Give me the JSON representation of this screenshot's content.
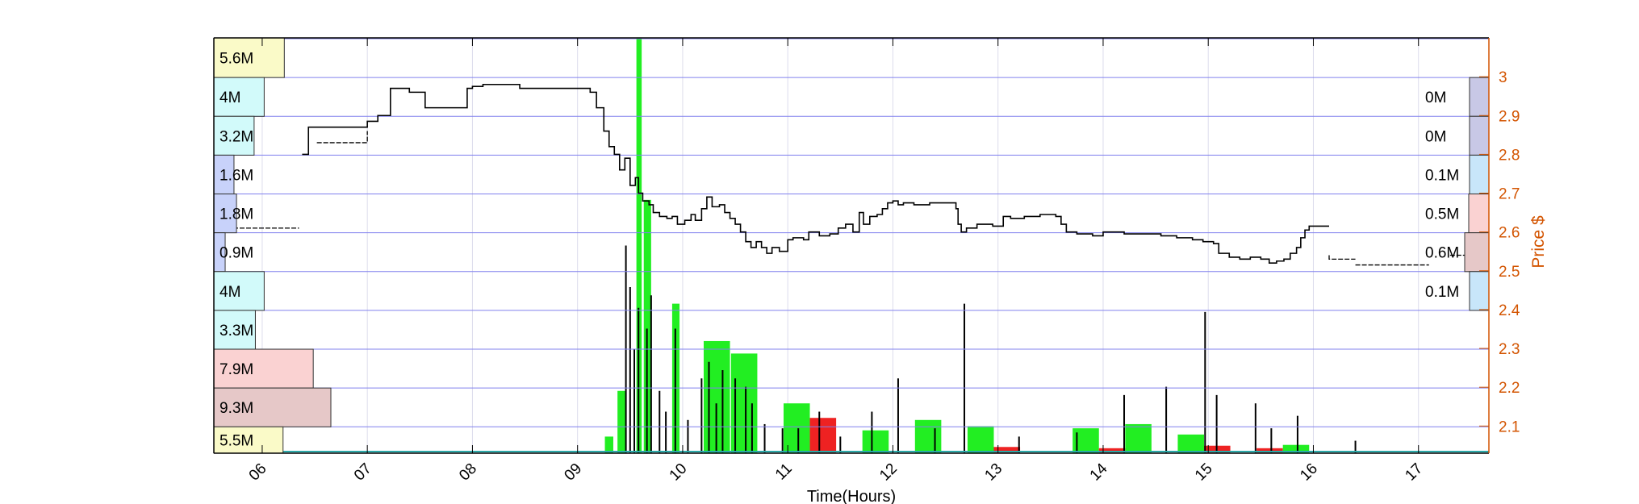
{
  "colors": {
    "price": "#000000",
    "axis_right": "#d35400",
    "band_line": "#8080ee",
    "grid": "#dcdcec",
    "up_volume": "#22ee22",
    "down_volume": "#ee2222",
    "baseline": "#2aa8a8"
  },
  "chart_data": {
    "type": "line",
    "xlabel": "Time(Hours)",
    "ylabel_right": "Price $",
    "x_ticks": [
      "06",
      "07",
      "08",
      "09",
      "10",
      "11",
      "12",
      "13",
      "14",
      "15",
      "16",
      "17"
    ],
    "xlim": [
      5.54,
      17.67
    ],
    "y_ticks": [
      "2.1",
      "2.2",
      "2.3",
      "2.4",
      "2.5",
      "2.6",
      "2.7",
      "2.8",
      "2.9",
      "3"
    ],
    "ylim": [
      2.03,
      3.1
    ],
    "grid": true,
    "price_levels": [
      3.1,
      3.0,
      2.9,
      2.8,
      2.7,
      2.6,
      2.5,
      2.4,
      2.3,
      2.2,
      2.1
    ],
    "volume_profile_left": [
      {
        "label": "5.6M",
        "value": 5.6,
        "color": "#fafac8"
      },
      {
        "label": "4M",
        "value": 4.0,
        "color": "#d2fafa"
      },
      {
        "label": "3.2M",
        "value": 3.2,
        "color": "#d2fafa"
      },
      {
        "label": "1.6M",
        "value": 1.6,
        "color": "#c8d2fa"
      },
      {
        "label": "1.8M",
        "value": 1.8,
        "color": "#c8d2fa"
      },
      {
        "label": "0.9M",
        "value": 0.9,
        "color": "#c8d2fa"
      },
      {
        "label": "4M",
        "value": 4.0,
        "color": "#d2fafa"
      },
      {
        "label": "3.3M",
        "value": 3.3,
        "color": "#d2fafa"
      },
      {
        "label": "7.9M",
        "value": 7.9,
        "color": "#fad2d2"
      },
      {
        "label": "9.3M",
        "value": 9.3,
        "color": "#e6c8c8"
      },
      {
        "label": "5.5M",
        "value": 5.5,
        "color": "#fafac8"
      }
    ],
    "volume_profile_right": [
      {
        "label": "",
        "value": 0.0,
        "color": "#ffffff"
      },
      {
        "label": "0M",
        "value": 0.02,
        "color": "#c8c8e6"
      },
      {
        "label": "0M",
        "value": 0.02,
        "color": "#c8c8e6"
      },
      {
        "label": "0.1M",
        "value": 0.1,
        "color": "#c8e6fa"
      },
      {
        "label": "0.5M",
        "value": 0.5,
        "color": "#fad2d2"
      },
      {
        "label": "0.6M",
        "value": 0.6,
        "color": "#e6c8c8"
      },
      {
        "label": "0.1M",
        "value": 0.1,
        "color": "#c8e6fa"
      }
    ],
    "price_series": [
      [
        6.38,
        2.8
      ],
      [
        6.4,
        2.8
      ],
      [
        6.44,
        2.87
      ],
      [
        6.9,
        2.87
      ],
      [
        7.0,
        2.885
      ],
      [
        7.05,
        2.885
      ],
      [
        7.1,
        2.9
      ],
      [
        7.2,
        2.9
      ],
      [
        7.22,
        2.97
      ],
      [
        7.35,
        2.97
      ],
      [
        7.4,
        2.96
      ],
      [
        7.55,
        2.96
      ],
      [
        7.55,
        2.92
      ],
      [
        7.85,
        2.92
      ],
      [
        7.95,
        2.97
      ],
      [
        8.0,
        2.975
      ],
      [
        8.1,
        2.98
      ],
      [
        8.4,
        2.98
      ],
      [
        8.45,
        2.97
      ],
      [
        9.05,
        2.97
      ],
      [
        9.12,
        2.96
      ],
      [
        9.18,
        2.92
      ],
      [
        9.25,
        2.86
      ],
      [
        9.3,
        2.82
      ],
      [
        9.35,
        2.8
      ],
      [
        9.4,
        2.76
      ],
      [
        9.45,
        2.79
      ],
      [
        9.5,
        2.72
      ],
      [
        9.55,
        2.74
      ],
      [
        9.58,
        2.7
      ],
      [
        9.62,
        2.68
      ],
      [
        9.68,
        2.67
      ],
      [
        9.72,
        2.65
      ],
      [
        9.78,
        2.64
      ],
      [
        9.85,
        2.635
      ],
      [
        9.9,
        2.64
      ],
      [
        9.95,
        2.62
      ],
      [
        10.02,
        2.63
      ],
      [
        10.08,
        2.645
      ],
      [
        10.12,
        2.63
      ],
      [
        10.18,
        2.66
      ],
      [
        10.23,
        2.69
      ],
      [
        10.28,
        2.665
      ],
      [
        10.35,
        2.67
      ],
      [
        10.4,
        2.65
      ],
      [
        10.45,
        2.635
      ],
      [
        10.5,
        2.62
      ],
      [
        10.55,
        2.6
      ],
      [
        10.6,
        2.575
      ],
      [
        10.65,
        2.56
      ],
      [
        10.7,
        2.575
      ],
      [
        10.75,
        2.56
      ],
      [
        10.8,
        2.545
      ],
      [
        10.85,
        2.56
      ],
      [
        10.92,
        2.55
      ],
      [
        11.0,
        2.58
      ],
      [
        11.05,
        2.585
      ],
      [
        11.15,
        2.58
      ],
      [
        11.2,
        2.6
      ],
      [
        11.3,
        2.59
      ],
      [
        11.4,
        2.595
      ],
      [
        11.48,
        2.61
      ],
      [
        11.55,
        2.62
      ],
      [
        11.62,
        2.6
      ],
      [
        11.68,
        2.65
      ],
      [
        11.72,
        2.62
      ],
      [
        11.78,
        2.64
      ],
      [
        11.85,
        2.645
      ],
      [
        11.9,
        2.66
      ],
      [
        11.95,
        2.675
      ],
      [
        12.0,
        2.68
      ],
      [
        12.05,
        2.67
      ],
      [
        12.1,
        2.675
      ],
      [
        12.2,
        2.67
      ],
      [
        12.35,
        2.675
      ],
      [
        12.55,
        2.675
      ],
      [
        12.6,
        2.66
      ],
      [
        12.62,
        2.62
      ],
      [
        12.65,
        2.6
      ],
      [
        12.7,
        2.61
      ],
      [
        12.8,
        2.62
      ],
      [
        12.95,
        2.615
      ],
      [
        13.05,
        2.64
      ],
      [
        13.12,
        2.635
      ],
      [
        13.25,
        2.64
      ],
      [
        13.4,
        2.645
      ],
      [
        13.55,
        2.64
      ],
      [
        13.6,
        2.62
      ],
      [
        13.65,
        2.6
      ],
      [
        13.75,
        2.595
      ],
      [
        13.9,
        2.59
      ],
      [
        14.0,
        2.6
      ],
      [
        14.2,
        2.595
      ],
      [
        14.4,
        2.595
      ],
      [
        14.55,
        2.59
      ],
      [
        14.7,
        2.585
      ],
      [
        14.85,
        2.58
      ],
      [
        14.95,
        2.575
      ],
      [
        15.05,
        2.57
      ],
      [
        15.1,
        2.545
      ],
      [
        15.2,
        2.535
      ],
      [
        15.3,
        2.53
      ],
      [
        15.4,
        2.535
      ],
      [
        15.5,
        2.53
      ],
      [
        15.58,
        2.52
      ],
      [
        15.65,
        2.525
      ],
      [
        15.72,
        2.53
      ],
      [
        15.78,
        2.545
      ],
      [
        15.84,
        2.56
      ],
      [
        15.88,
        2.585
      ],
      [
        15.92,
        2.605
      ],
      [
        15.96,
        2.615
      ],
      [
        16.15,
        2.615
      ]
    ],
    "late_price_segments": [
      [
        [
          16.15,
          2.54
        ],
        [
          16.15,
          2.53
        ],
        [
          16.4,
          2.53
        ]
      ],
      [
        [
          16.4,
          2.515
        ],
        [
          17.1,
          2.515
        ]
      ],
      [
        [
          17.3,
          2.54
        ],
        [
          17.48,
          2.54
        ]
      ]
    ],
    "early_price_segments": [
      [
        [
          5.54,
          2.61
        ],
        [
          6.35,
          2.61
        ]
      ],
      [
        [
          6.52,
          2.83
        ],
        [
          7.0,
          2.86
        ]
      ]
    ],
    "volume_bars": [
      {
        "x": 9.26,
        "w": 0.08,
        "v": 0.04,
        "dir": "up"
      },
      {
        "x": 9.38,
        "w": 0.08,
        "v": 0.15,
        "dir": "up"
      },
      {
        "x": 9.56,
        "w": 0.05,
        "v": 1.0,
        "dir": "up"
      },
      {
        "x": 9.63,
        "w": 0.07,
        "v": 0.61,
        "dir": "up"
      },
      {
        "x": 9.9,
        "w": 0.07,
        "v": 0.36,
        "dir": "up"
      },
      {
        "x": 10.2,
        "w": 0.25,
        "v": 0.27,
        "dir": "up"
      },
      {
        "x": 10.46,
        "w": 0.25,
        "v": 0.24,
        "dir": "up"
      },
      {
        "x": 10.96,
        "w": 0.25,
        "v": 0.12,
        "dir": "up"
      },
      {
        "x": 11.21,
        "w": 0.25,
        "v": 0.085,
        "dir": "down"
      },
      {
        "x": 11.71,
        "w": 0.25,
        "v": 0.055,
        "dir": "up"
      },
      {
        "x": 12.21,
        "w": 0.25,
        "v": 0.08,
        "dir": "up"
      },
      {
        "x": 12.71,
        "w": 0.25,
        "v": 0.065,
        "dir": "up"
      },
      {
        "x": 12.96,
        "w": 0.25,
        "v": 0.015,
        "dir": "down"
      },
      {
        "x": 13.71,
        "w": 0.25,
        "v": 0.06,
        "dir": "up"
      },
      {
        "x": 13.96,
        "w": 0.25,
        "v": 0.012,
        "dir": "down"
      },
      {
        "x": 14.21,
        "w": 0.25,
        "v": 0.07,
        "dir": "up"
      },
      {
        "x": 14.71,
        "w": 0.25,
        "v": 0.045,
        "dir": "up"
      },
      {
        "x": 14.96,
        "w": 0.25,
        "v": 0.018,
        "dir": "down"
      },
      {
        "x": 15.46,
        "w": 0.25,
        "v": 0.012,
        "dir": "down"
      },
      {
        "x": 15.71,
        "w": 0.25,
        "v": 0.02,
        "dir": "up"
      }
    ],
    "volume_spikes": [
      [
        9.46,
        0.5
      ],
      [
        9.5,
        0.4
      ],
      [
        9.54,
        0.25
      ],
      [
        9.58,
        0.35
      ],
      [
        9.66,
        0.3
      ],
      [
        9.7,
        0.38
      ],
      [
        9.78,
        0.15
      ],
      [
        9.84,
        0.1
      ],
      [
        9.93,
        0.3
      ],
      [
        10.05,
        0.08
      ],
      [
        10.18,
        0.18
      ],
      [
        10.25,
        0.22
      ],
      [
        10.32,
        0.12
      ],
      [
        10.38,
        0.2
      ],
      [
        10.5,
        0.18
      ],
      [
        10.6,
        0.16
      ],
      [
        10.66,
        0.12
      ],
      [
        10.78,
        0.07
      ],
      [
        10.95,
        0.06
      ],
      [
        11.1,
        0.06
      ],
      [
        11.3,
        0.1
      ],
      [
        11.5,
        0.04
      ],
      [
        11.8,
        0.1
      ],
      [
        12.05,
        0.18
      ],
      [
        12.4,
        0.06
      ],
      [
        12.68,
        0.36
      ],
      [
        13.2,
        0.04
      ],
      [
        13.75,
        0.05
      ],
      [
        14.2,
        0.14
      ],
      [
        14.6,
        0.16
      ],
      [
        14.97,
        0.34
      ],
      [
        15.08,
        0.14
      ],
      [
        15.45,
        0.12
      ],
      [
        15.6,
        0.06
      ],
      [
        15.85,
        0.09
      ],
      [
        16.4,
        0.03
      ]
    ]
  }
}
